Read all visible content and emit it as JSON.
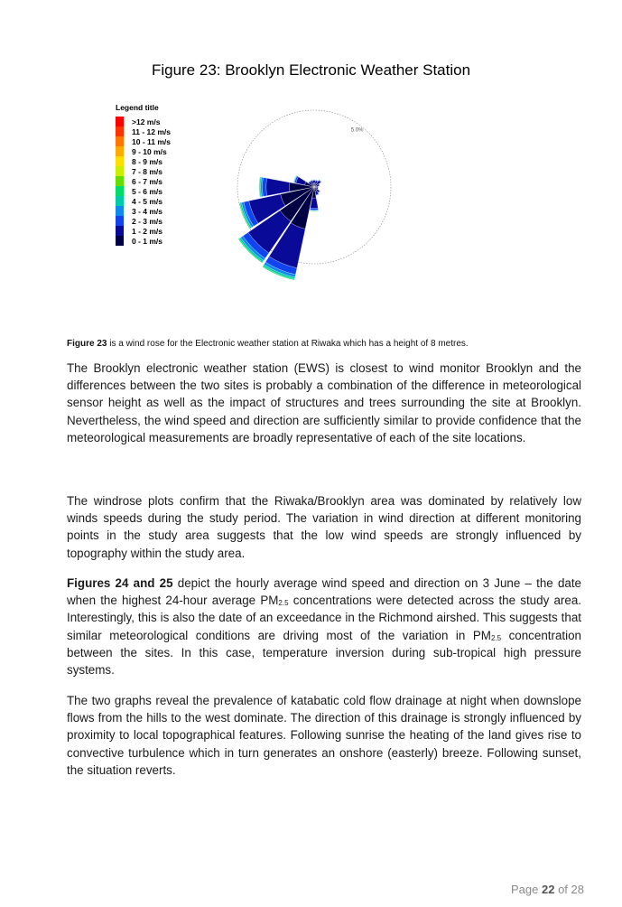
{
  "figure_title": "Figure 23: Brooklyn Electronic Weather Station",
  "legend": {
    "title": "Legend title",
    "items": [
      {
        "label": ">12 m/s",
        "color": "#ff0000"
      },
      {
        "label": "11 - 12 m/s",
        "color": "#ff3300"
      },
      {
        "label": "10 - 11 m/s",
        "color": "#ff7700"
      },
      {
        "label": "9 - 10 m/s",
        "color": "#ffaa00"
      },
      {
        "label": "8 - 9 m/s",
        "color": "#ffdd00"
      },
      {
        "label": "7 - 8 m/s",
        "color": "#ccee00"
      },
      {
        "label": "6 - 7 m/s",
        "color": "#66dd00"
      },
      {
        "label": "5 - 6 m/s",
        "color": "#00dd66"
      },
      {
        "label": "4 - 5 m/s",
        "color": "#00ccaa"
      },
      {
        "label": "3 - 4 m/s",
        "color": "#1188ee"
      },
      {
        "label": "2 - 3 m/s",
        "color": "#1144ee"
      },
      {
        "label": "1 - 2 m/s",
        "color": "#0a0a99"
      },
      {
        "label": "0 - 1 m/s",
        "color": "#000044"
      }
    ]
  },
  "rose": {
    "ring_label": "5.0%",
    "ring_percent": 5.0,
    "directions_deg": [
      0,
      22.5,
      45,
      67.5,
      90,
      112.5,
      135,
      157.5,
      180,
      202.5,
      225,
      247.5,
      270,
      292.5,
      315,
      337.5
    ],
    "frequency_percent": [
      0.5,
      0.5,
      0.6,
      0.4,
      0.3,
      0.3,
      0.5,
      0.6,
      1.6,
      6.2,
      6.0,
      5.0,
      3.6,
      1.4,
      0.5,
      0.5
    ]
  },
  "caption": {
    "bold": "Figure 23",
    "text": " is a wind rose for the Electronic weather station at Riwaka which has a height of 8 metres."
  },
  "paragraphs": {
    "p1": "The Brooklyn electronic weather station (EWS) is closest to wind monitor Brooklyn and the differences between the two sites is probably a combination of the difference in meteorological sensor height as well as the impact of structures and trees surrounding the site at Brooklyn. Nevertheless, the wind speed and direction are sufficiently similar to provide confidence that the meteorological measurements are broadly representative of each of the site locations.",
    "p2": "The windrose plots confirm that the Riwaka/Brooklyn area was dominated by relatively low winds speeds during the study period. The variation in wind direction at different monitoring points in the study area suggests that the low wind speeds are strongly influenced by topography within the study area.",
    "p3_bold": "Figures 24 and 25",
    "p3_a": " depict the hourly average wind speed and direction on 3 June – the date when the highest 24-hour average PM",
    "p3_sub1": "2.5",
    "p3_b": " concentrations were detected across the study area. Interestingly, this is also the date of an exceedance in the Richmond airshed. This suggests that similar meteorological conditions are driving most of the variation in PM",
    "p3_sub2": "2.5",
    "p3_c": " concentration between the sites. In this case, temperature inversion during sub-tropical high pressure systems.",
    "p4": "The two graphs reveal the prevalence of katabatic cold flow drainage at night when downslope flows from the hills to the west dominate. The direction of this drainage is strongly influenced by proximity to local topographical features. Following sunrise the heating of the land gives rise to convective turbulence which in turn generates an onshore (easterly) breeze. Following sunset, the situation reverts."
  },
  "footer": {
    "prefix": "Page ",
    "current": "22",
    "middle": " of ",
    "total": "28"
  }
}
